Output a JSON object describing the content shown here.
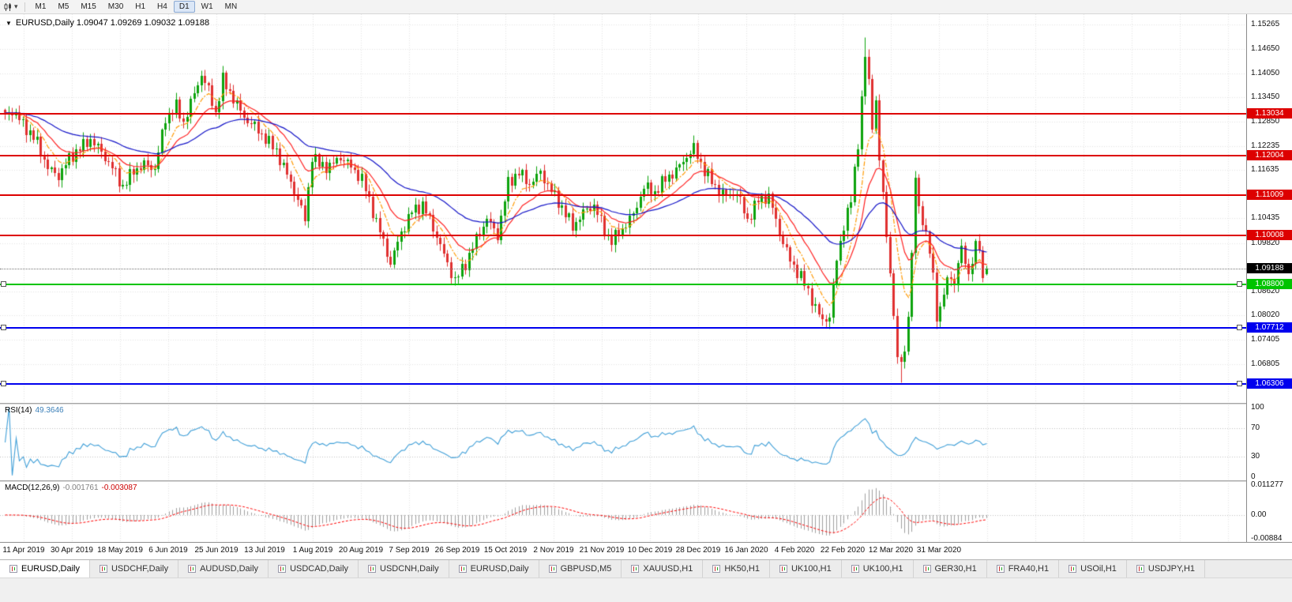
{
  "toolbar": {
    "chart_type_icon": "candlestick-chart",
    "dropdown_icon": "▾",
    "timeframes": [
      "M1",
      "M5",
      "M15",
      "M30",
      "H1",
      "H4",
      "D1",
      "W1",
      "MN"
    ],
    "active_timeframe": "D1"
  },
  "chart": {
    "collapse_arrow": "▼",
    "title": "EURUSD,Daily 1.09047 1.09269 1.09032 1.09188"
  },
  "chart_data": {
    "type": "candlestick",
    "symbol": "EURUSD",
    "timeframe": "Daily",
    "ohlc_display": {
      "open": "1.09047",
      "high": "1.09269",
      "low": "1.09032",
      "close": "1.09188"
    },
    "current_price": "1.09188",
    "price_axis": {
      "min": 1.0584,
      "max": 1.1552,
      "ticks": [
        "1.15265",
        "1.14650",
        "1.14050",
        "1.13450",
        "1.12850",
        "1.12235",
        "1.11635",
        "1.10435",
        "1.09820",
        "1.08620",
        "1.08020",
        "1.07405",
        "1.06805"
      ]
    },
    "x_axis": {
      "labels": [
        "11 Apr 2019",
        "30 Apr 2019",
        "18 May 2019",
        "6 Jun 2019",
        "25 Jun 2019",
        "13 Jul 2019",
        "1 Aug 2019",
        "20 Aug 2019",
        "7 Sep 2019",
        "26 Sep 2019",
        "15 Oct 2019",
        "2 Nov 2019",
        "21 Nov 2019",
        "10 Dec 2019",
        "28 Dec 2019",
        "16 Jan 2020",
        "4 Feb 2020",
        "22 Feb 2020",
        "12 Mar 2020",
        "31 Mar 2020"
      ]
    },
    "horizontal_lines": [
      {
        "price": 1.13034,
        "label": "1.13034",
        "color": "#dd0000",
        "kind": "resistance",
        "handles": false
      },
      {
        "price": 1.12004,
        "label": "1.12004",
        "color": "#dd0000",
        "kind": "resistance",
        "handles": false
      },
      {
        "price": 1.11009,
        "label": "1.11009",
        "color": "#dd0000",
        "kind": "resistance",
        "handles": false
      },
      {
        "price": 1.10008,
        "label": "1.10008",
        "color": "#dd0000",
        "kind": "resistance",
        "handles": false
      },
      {
        "price": 1.088,
        "label": "1.08800",
        "color": "#00c400",
        "kind": "support",
        "handles": true
      },
      {
        "price": 1.07712,
        "label": "1.07712",
        "color": "#0000ee",
        "kind": "support",
        "handles": true
      },
      {
        "price": 1.06306,
        "label": "1.06306",
        "color": "#0000ee",
        "kind": "support",
        "handles": true
      }
    ],
    "candles_anchor_closes": [
      [
        0,
        1.13
      ],
      [
        2,
        1.1312
      ],
      [
        4,
        1.129
      ],
      [
        6,
        1.1268
      ],
      [
        9,
        1.1232
      ],
      [
        12,
        1.1168
      ],
      [
        15,
        1.115
      ],
      [
        18,
        1.1192
      ],
      [
        21,
        1.1218
      ],
      [
        24,
        1.124
      ],
      [
        27,
        1.1208
      ],
      [
        30,
        1.117
      ],
      [
        33,
        1.1122
      ],
      [
        36,
        1.1162
      ],
      [
        39,
        1.1178
      ],
      [
        42,
        1.1168
      ],
      [
        45,
        1.1292
      ],
      [
        48,
        1.1322
      ],
      [
        50,
        1.1282
      ],
      [
        52,
        1.133
      ],
      [
        55,
        1.1402
      ],
      [
        57,
        1.1362
      ],
      [
        59,
        1.1305
      ],
      [
        61,
        1.1388
      ],
      [
        64,
        1.1342
      ],
      [
        67,
        1.1295
      ],
      [
        70,
        1.1272
      ],
      [
        73,
        1.1242
      ],
      [
        76,
        1.1212
      ],
      [
        79,
        1.1152
      ],
      [
        82,
        1.1092
      ],
      [
        84,
        1.104
      ],
      [
        86,
        1.1198
      ],
      [
        88,
        1.1178
      ],
      [
        91,
        1.1172
      ],
      [
        94,
        1.1198
      ],
      [
        97,
        1.1172
      ],
      [
        100,
        1.1142
      ],
      [
        103,
        1.1062
      ],
      [
        105,
        1.101
      ],
      [
        108,
        1.0932
      ],
      [
        111,
        1.1008
      ],
      [
        114,
        1.1062
      ],
      [
        117,
        1.1078
      ],
      [
        120,
        1.1022
      ],
      [
        123,
        1.0952
      ],
      [
        126,
        1.0888
      ],
      [
        129,
        1.0932
      ],
      [
        132,
        1.0992
      ],
      [
        135,
        1.1042
      ],
      [
        138,
        1.1002
      ],
      [
        141,
        1.1132
      ],
      [
        144,
        1.1158
      ],
      [
        147,
        1.1128
      ],
      [
        150,
        1.1158
      ],
      [
        153,
        1.1112
      ],
      [
        156,
        1.1072
      ],
      [
        159,
        1.1022
      ],
      [
        162,
        1.1058
      ],
      [
        165,
        1.1078
      ],
      [
        168,
        1.1012
      ],
      [
        170,
        1.0988
      ],
      [
        173,
        1.1018
      ],
      [
        176,
        1.1052
      ],
      [
        179,
        1.1122
      ],
      [
        182,
        1.1108
      ],
      [
        185,
        1.1142
      ],
      [
        188,
        1.1162
      ],
      [
        191,
        1.1198
      ],
      [
        193,
        1.1218
      ],
      [
        196,
        1.1162
      ],
      [
        199,
        1.1122
      ],
      [
        202,
        1.1098
      ],
      [
        205,
        1.1108
      ],
      [
        208,
        1.1038
      ],
      [
        211,
        1.1088
      ],
      [
        214,
        1.1098
      ],
      [
        217,
        1.1008
      ],
      [
        220,
        1.0938
      ],
      [
        223,
        1.0898
      ],
      [
        226,
        1.0842
      ],
      [
        229,
        1.0786
      ],
      [
        231,
        1.0802
      ],
      [
        233,
        1.0938
      ],
      [
        235,
        1.1028
      ],
      [
        237,
        1.1088
      ],
      [
        239,
        1.1232
      ],
      [
        241,
        1.1448
      ],
      [
        242,
        1.1382
      ],
      [
        243,
        1.1272
      ],
      [
        244,
        1.1342
      ],
      [
        245,
        1.1182
      ],
      [
        246,
        1.1108
      ],
      [
        247,
        1.0992
      ],
      [
        248,
        1.0922
      ],
      [
        249,
        1.0792
      ],
      [
        250,
        1.0702
      ],
      [
        251,
        1.0672
      ],
      [
        252,
        1.0728
      ],
      [
        253,
        1.0792
      ],
      [
        254,
        1.0962
      ],
      [
        255,
        1.1132
      ],
      [
        256,
        1.1082
      ],
      [
        257,
        1.1032
      ],
      [
        258,
        1.1008
      ],
      [
        259,
        1.0952
      ],
      [
        260,
        1.0902
      ],
      [
        261,
        1.0802
      ],
      [
        262,
        1.0818
      ],
      [
        263,
        1.0858
      ],
      [
        264,
        1.0882
      ],
      [
        265,
        1.0908
      ],
      [
        266,
        1.0872
      ],
      [
        267,
        1.0938
      ],
      [
        268,
        1.0962
      ],
      [
        269,
        1.0938
      ],
      [
        270,
        1.0908
      ],
      [
        271,
        1.0932
      ],
      [
        272,
        1.0982
      ],
      [
        273,
        1.0958
      ],
      [
        274,
        1.0908
      ],
      [
        275,
        1.09188
      ]
    ],
    "wick_overrides": {
      "high": {
        "55": 1.1412,
        "241": 1.1495
      },
      "low": {
        "126": 1.0879,
        "229": 1.0777,
        "251": 1.0636,
        "261": 1.0768
      }
    },
    "moving_averages": [
      {
        "name": "ma-fast",
        "period": 8,
        "color": "#ff9900",
        "style": "dashdot"
      },
      {
        "name": "ma-medium",
        "period": 16,
        "color": "#ff2020",
        "style": "solid"
      },
      {
        "name": "ma-slow",
        "period": 45,
        "color": "#1414c8",
        "style": "solid"
      }
    ],
    "indicators": {
      "rsi": {
        "label": "RSI(14)",
        "value": "49.3646",
        "levels": [
          "100",
          "70",
          "30",
          "0"
        ],
        "color": "#3f9fd8"
      },
      "macd": {
        "label": "MACD(12,26,9)",
        "macd_value": "-0.001761",
        "signal_value": "-0.003087",
        "scale_labels": [
          "0.011277",
          "0.00",
          "-0.00884"
        ],
        "histogram_color": "#a0a0a0",
        "signal_color": "#ff0000"
      }
    },
    "colors": {
      "up": "#0ca30c",
      "down": "#e03030",
      "background": "#ffffff",
      "grid": "#e4e4e4"
    }
  },
  "tabs": {
    "items": [
      {
        "label": "EURUSD,Daily",
        "active": true
      },
      {
        "label": "USDCHF,Daily",
        "active": false
      },
      {
        "label": "AUDUSD,Daily",
        "active": false
      },
      {
        "label": "USDCAD,Daily",
        "active": false
      },
      {
        "label": "USDCNH,Daily",
        "active": false
      },
      {
        "label": "EURUSD,Daily",
        "active": false
      },
      {
        "label": "GBPUSD,M5",
        "active": false
      },
      {
        "label": "XAUUSD,H1",
        "active": false
      },
      {
        "label": "HK50,H1",
        "active": false
      },
      {
        "label": "UK100,H1",
        "active": false
      },
      {
        "label": "UK100,H1",
        "active": false
      },
      {
        "label": "GER30,H1",
        "active": false
      },
      {
        "label": "FRA40,H1",
        "active": false
      },
      {
        "label": "USOil,H1",
        "active": false
      },
      {
        "label": "USDJPY,H1",
        "active": false
      }
    ]
  }
}
